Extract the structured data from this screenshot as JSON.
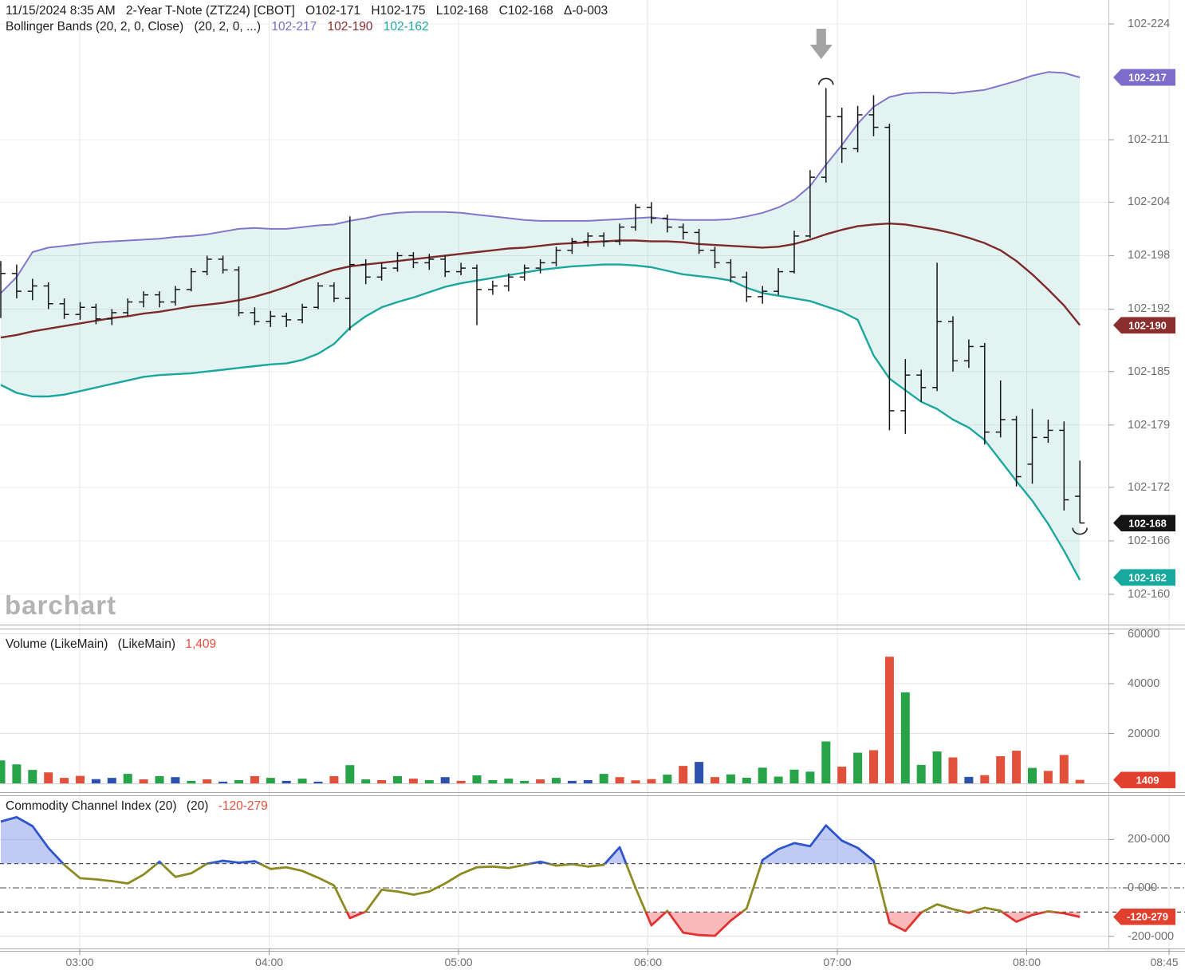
{
  "header": {
    "datetime": "11/15/2024 8:35 AM",
    "instrument": "2-Year T-Note (ZTZ24) [CBOT]",
    "open": "O102-171",
    "high": "H102-175",
    "low": "L102-168",
    "close": "C102-168",
    "change": "Δ-0-003",
    "study": {
      "name": "Bollinger Bands (20, 2, 0, Close)",
      "params": "(20, 2, 0, ...)",
      "upper_value": "102-217",
      "middle_value": "102-190",
      "lower_value": "102-162"
    }
  },
  "watermark": "barchart",
  "volume_panel": {
    "label": "Volume (LikeMain)",
    "params": "(LikeMain)",
    "current": "1,409"
  },
  "cci_panel": {
    "label": "Commodity Channel Index (20)",
    "params": "(20)",
    "current": "-120-279"
  },
  "axes": {
    "time_labels": [
      "03:00",
      "04:00",
      "05:00",
      "06:00",
      "07:00",
      "08:00",
      "08:45"
    ],
    "price_ticks": [
      {
        "t": "102-224",
        "v": 224
      },
      {
        "t": "102-211",
        "v": 211
      },
      {
        "t": "102-204",
        "v": 204
      },
      {
        "t": "102-198",
        "v": 198
      },
      {
        "t": "102-192",
        "v": 192
      },
      {
        "t": "102-185",
        "v": 185
      },
      {
        "t": "102-179",
        "v": 179
      },
      {
        "t": "102-172",
        "v": 172
      },
      {
        "t": "102-166",
        "v": 166
      },
      {
        "t": "102-160",
        "v": 160
      }
    ],
    "volume_ticks": [
      {
        "t": "60000",
        "v": 60000
      },
      {
        "t": "40000",
        "v": 40000
      },
      {
        "t": "20000",
        "v": 20000
      }
    ],
    "cci_ticks": [
      {
        "t": "200-000",
        "v": 200
      },
      {
        "t": "0-000",
        "v": 0
      },
      {
        "t": "-200-000",
        "v": -200
      }
    ]
  },
  "badges": {
    "price": [
      {
        "text": "102-217",
        "v": 218.0,
        "color": "#7d6cc9",
        "name": "bollinger-upper-badge"
      },
      {
        "text": "102-190",
        "v": 190.2,
        "color": "#8b2e2e",
        "name": "bollinger-middle-badge"
      },
      {
        "text": "102-168",
        "v": 168.0,
        "color": "#151515",
        "name": "last-price-badge"
      },
      {
        "text": "102-162",
        "v": 161.9,
        "color": "#17a89e",
        "name": "bollinger-lower-badge"
      }
    ],
    "volume": {
      "text": "1409",
      "v": 1409,
      "color": "#e2402e",
      "name": "volume-badge"
    },
    "cci": {
      "text": "-120-279",
      "v": -120.279,
      "color": "#e2402e",
      "name": "cci-badge"
    }
  },
  "colors": {
    "bb_upper": "#8276c9",
    "bb_middle": "#7c2a2a",
    "bb_lower": "#1ba79e",
    "bb_fill": "rgba(30,160,152,0.13)",
    "ohlc": "#161616",
    "vol_green": "#27a348",
    "vol_red": "#e2503c",
    "vol_blue": "#2d52ad",
    "cci_olive": "#8b8b21",
    "cci_blue": "#2f55cc",
    "cci_red": "#e03232",
    "cci_fill_blue": "rgba(90,115,230,0.38)",
    "cci_fill_red": "rgba(245,90,90,0.42)",
    "grid": "#e7e7e7",
    "grid_dark": "#4a4a4a",
    "separator": "#a9a9a9",
    "arrow": "#a3a3a3"
  },
  "chart_data": [
    {
      "type": "ohlc",
      "title": "2-Year T-Note (ZTZ24) 5-minute bars with Bollinger Bands (20,2)",
      "price_format": "102-<tenths of 32nds>",
      "ylim": [
        160,
        224
      ],
      "bars": [
        [
          197.0,
          197.4,
          191.0,
          196.0
        ],
        [
          196.0,
          197.0,
          193.2,
          194.0
        ],
        [
          194.0,
          195.4,
          193.0,
          194.6
        ],
        [
          194.6,
          195.0,
          192.0,
          192.6
        ],
        [
          192.6,
          193.2,
          190.9,
          191.4
        ],
        [
          191.4,
          192.8,
          190.8,
          192.2
        ],
        [
          192.2,
          192.6,
          190.3,
          190.9
        ],
        [
          190.9,
          192.0,
          190.2,
          191.6
        ],
        [
          191.6,
          193.2,
          191.2,
          192.8
        ],
        [
          192.8,
          194.0,
          192.2,
          193.6
        ],
        [
          193.6,
          194.0,
          192.2,
          192.8
        ],
        [
          192.8,
          194.6,
          192.4,
          194.2
        ],
        [
          194.2,
          196.6,
          194.0,
          196.2
        ],
        [
          196.2,
          198.0,
          195.8,
          197.6
        ],
        [
          197.6,
          198.0,
          196.0,
          196.4
        ],
        [
          196.4,
          196.8,
          191.2,
          191.6
        ],
        [
          191.6,
          192.2,
          190.2,
          190.6
        ],
        [
          190.6,
          191.8,
          190.0,
          191.2
        ],
        [
          191.2,
          191.6,
          190.0,
          190.8
        ],
        [
          190.8,
          192.6,
          190.4,
          192.2
        ],
        [
          192.2,
          195.0,
          192.0,
          194.6
        ],
        [
          194.6,
          195.0,
          192.8,
          193.2
        ],
        [
          193.2,
          202.4,
          189.6,
          197.0
        ],
        [
          197.0,
          197.6,
          194.8,
          195.6
        ],
        [
          195.6,
          197.2,
          195.2,
          196.6
        ],
        [
          196.6,
          198.4,
          196.2,
          198.0
        ],
        [
          198.0,
          198.4,
          196.6,
          197.2
        ],
        [
          197.2,
          198.2,
          196.4,
          197.6
        ],
        [
          197.6,
          198.0,
          195.6,
          196.2
        ],
        [
          196.2,
          197.2,
          195.8,
          196.6
        ],
        [
          196.6,
          197.0,
          190.2,
          194.2
        ],
        [
          194.2,
          195.2,
          193.6,
          194.6
        ],
        [
          194.6,
          196.0,
          194.0,
          195.6
        ],
        [
          195.6,
          197.0,
          195.2,
          196.6
        ],
        [
          196.6,
          197.6,
          196.0,
          197.2
        ],
        [
          197.2,
          199.0,
          196.8,
          198.6
        ],
        [
          198.6,
          200.0,
          198.2,
          199.6
        ],
        [
          199.6,
          200.6,
          199.0,
          200.2
        ],
        [
          200.2,
          200.6,
          199.0,
          199.6
        ],
        [
          199.6,
          201.6,
          199.2,
          201.2
        ],
        [
          201.2,
          203.8,
          200.8,
          203.4
        ],
        [
          203.4,
          204.0,
          201.6,
          202.2
        ],
        [
          202.2,
          202.6,
          200.6,
          201.2
        ],
        [
          201.2,
          201.6,
          199.8,
          200.6
        ],
        [
          200.6,
          201.0,
          198.2,
          198.6
        ],
        [
          198.6,
          199.0,
          196.6,
          197.2
        ],
        [
          197.2,
          197.6,
          195.0,
          195.6
        ],
        [
          195.6,
          196.2,
          192.8,
          193.4
        ],
        [
          193.4,
          194.6,
          192.6,
          194.0
        ],
        [
          194.0,
          196.6,
          193.6,
          196.2
        ],
        [
          196.2,
          200.8,
          196.0,
          200.2
        ],
        [
          200.2,
          207.6,
          200.0,
          206.8
        ],
        [
          206.8,
          216.8,
          206.2,
          213.6
        ],
        [
          213.6,
          214.6,
          208.4,
          210.0
        ],
        [
          210.0,
          214.8,
          209.6,
          213.8
        ],
        [
          213.8,
          216.0,
          211.4,
          212.4
        ],
        [
          212.4,
          212.8,
          178.4,
          180.6
        ],
        [
          180.6,
          186.4,
          178.0,
          184.6
        ],
        [
          184.6,
          185.2,
          181.6,
          183.2
        ],
        [
          183.2,
          197.2,
          182.8,
          190.6
        ],
        [
          190.6,
          191.2,
          185.0,
          186.2
        ],
        [
          186.2,
          188.6,
          185.4,
          187.8
        ],
        [
          187.8,
          188.2,
          176.8,
          178.2
        ],
        [
          178.2,
          184.0,
          177.6,
          179.6
        ],
        [
          179.6,
          180.0,
          172.1,
          173.2
        ],
        [
          174.6,
          180.8,
          172.4,
          177.6
        ],
        [
          177.6,
          179.6,
          177.0,
          178.4
        ],
        [
          178.4,
          179.4,
          169.4,
          170.6
        ],
        [
          171.0,
          175.0,
          168.0,
          168.0
        ]
      ],
      "bollinger": {
        "upper": [
          193.8,
          195.6,
          198.4,
          198.9,
          199.1,
          199.3,
          199.5,
          199.6,
          199.7,
          199.8,
          199.9,
          200.1,
          200.2,
          200.4,
          200.7,
          201.0,
          201.1,
          201.0,
          201.0,
          201.2,
          201.4,
          201.5,
          201.9,
          202.2,
          202.6,
          202.8,
          202.9,
          202.9,
          202.9,
          202.8,
          202.6,
          202.4,
          202.2,
          202.0,
          201.9,
          201.9,
          201.9,
          201.9,
          202.0,
          202.1,
          202.2,
          202.3,
          202.1,
          202.0,
          202.0,
          202.0,
          202.1,
          202.4,
          202.8,
          203.4,
          204.3,
          205.8,
          208.2,
          210.4,
          212.8,
          214.7,
          215.8,
          216.2,
          216.3,
          216.3,
          216.2,
          216.4,
          216.6,
          217.1,
          217.6,
          218.2,
          218.6,
          218.5,
          218.0
        ],
        "middle": [
          188.8,
          189.1,
          189.5,
          189.8,
          190.1,
          190.4,
          190.7,
          191.0,
          191.2,
          191.5,
          191.7,
          192.0,
          192.3,
          192.5,
          192.7,
          193.0,
          193.4,
          193.9,
          194.5,
          195.2,
          195.8,
          196.4,
          196.8,
          197.0,
          197.2,
          197.4,
          197.6,
          197.8,
          198.0,
          198.2,
          198.4,
          198.6,
          198.8,
          198.9,
          199.1,
          199.3,
          199.4,
          199.5,
          199.6,
          199.7,
          199.7,
          199.6,
          199.6,
          199.5,
          199.3,
          199.2,
          199.1,
          199.0,
          198.9,
          199.0,
          199.3,
          199.8,
          200.4,
          200.9,
          201.3,
          201.5,
          201.6,
          201.5,
          201.2,
          200.9,
          200.5,
          200.0,
          199.4,
          198.6,
          197.4,
          195.9,
          194.2,
          192.4,
          190.2
        ],
        "lower": [
          183.5,
          182.6,
          182.2,
          182.2,
          182.4,
          182.8,
          183.2,
          183.6,
          184.0,
          184.4,
          184.6,
          184.7,
          184.8,
          185.0,
          185.2,
          185.4,
          185.6,
          185.8,
          185.9,
          186.3,
          187.0,
          188.1,
          189.9,
          191.2,
          192.2,
          192.8,
          193.3,
          193.9,
          194.5,
          194.9,
          195.2,
          195.5,
          195.8,
          196.1,
          196.4,
          196.6,
          196.8,
          196.9,
          197.0,
          197.0,
          196.9,
          196.7,
          196.3,
          195.9,
          195.7,
          195.5,
          195.2,
          194.4,
          193.8,
          193.5,
          193.2,
          192.9,
          192.3,
          191.7,
          190.8,
          186.8,
          184.2,
          182.9,
          181.6,
          180.8,
          179.6,
          178.7,
          177.3,
          175.0,
          172.7,
          170.5,
          167.9,
          164.9,
          161.6
        ]
      },
      "annotations": {
        "arrow_bar": 52,
        "high_marker_bar": 52,
        "low_marker_bar": 68
      }
    },
    {
      "type": "bar",
      "title": "Volume (LikeMain)",
      "ylim": [
        0,
        64000
      ],
      "values": [
        9200,
        7600,
        5400,
        4400,
        2200,
        3000,
        1700,
        2200,
        3800,
        1600,
        2900,
        2500,
        1000,
        1600,
        700,
        1300,
        2900,
        2200,
        1000,
        1900,
        700,
        2900,
        7300,
        1600,
        1300,
        2900,
        1900,
        1300,
        2500,
        1000,
        3200,
        1300,
        1900,
        1000,
        1600,
        2200,
        1000,
        1300,
        3800,
        2500,
        1200,
        1700,
        3500,
        7000,
        8600,
        2500,
        3600,
        2250,
        6300,
        2700,
        5500,
        4700,
        16800,
        6700,
        12300,
        13300,
        50800,
        36500,
        7400,
        12800,
        10400,
        2600,
        3300,
        10900,
        13100,
        6200,
        5000,
        11400,
        1409
      ],
      "bar_colors": "gggrrrbbgrgbgrbgrgbgbrggrgrgbrggggrgbbgrrrgrbrgggggggrgrrgggrbrrrgrrr"
    },
    {
      "type": "line",
      "title": "Commodity Channel Index (20)",
      "ylim": [
        -230,
        290
      ],
      "overbought": 100,
      "oversold": -100,
      "values": [
        274,
        292,
        255,
        165,
        95,
        40,
        35,
        28,
        18,
        55,
        108,
        45,
        60,
        100,
        112,
        104,
        110,
        78,
        85,
        70,
        42,
        10,
        -125,
        -98,
        -8,
        -15,
        -28,
        -15,
        18,
        58,
        85,
        88,
        82,
        95,
        108,
        92,
        98,
        88,
        95,
        168,
        0,
        -155,
        -95,
        -185,
        -195,
        -198,
        -135,
        -85,
        115,
        160,
        185,
        172,
        258,
        195,
        165,
        112,
        -145,
        -178,
        -102,
        -68,
        -88,
        -103,
        -82,
        -95,
        -140,
        -112,
        -97,
        -105,
        -120.279
      ]
    }
  ]
}
